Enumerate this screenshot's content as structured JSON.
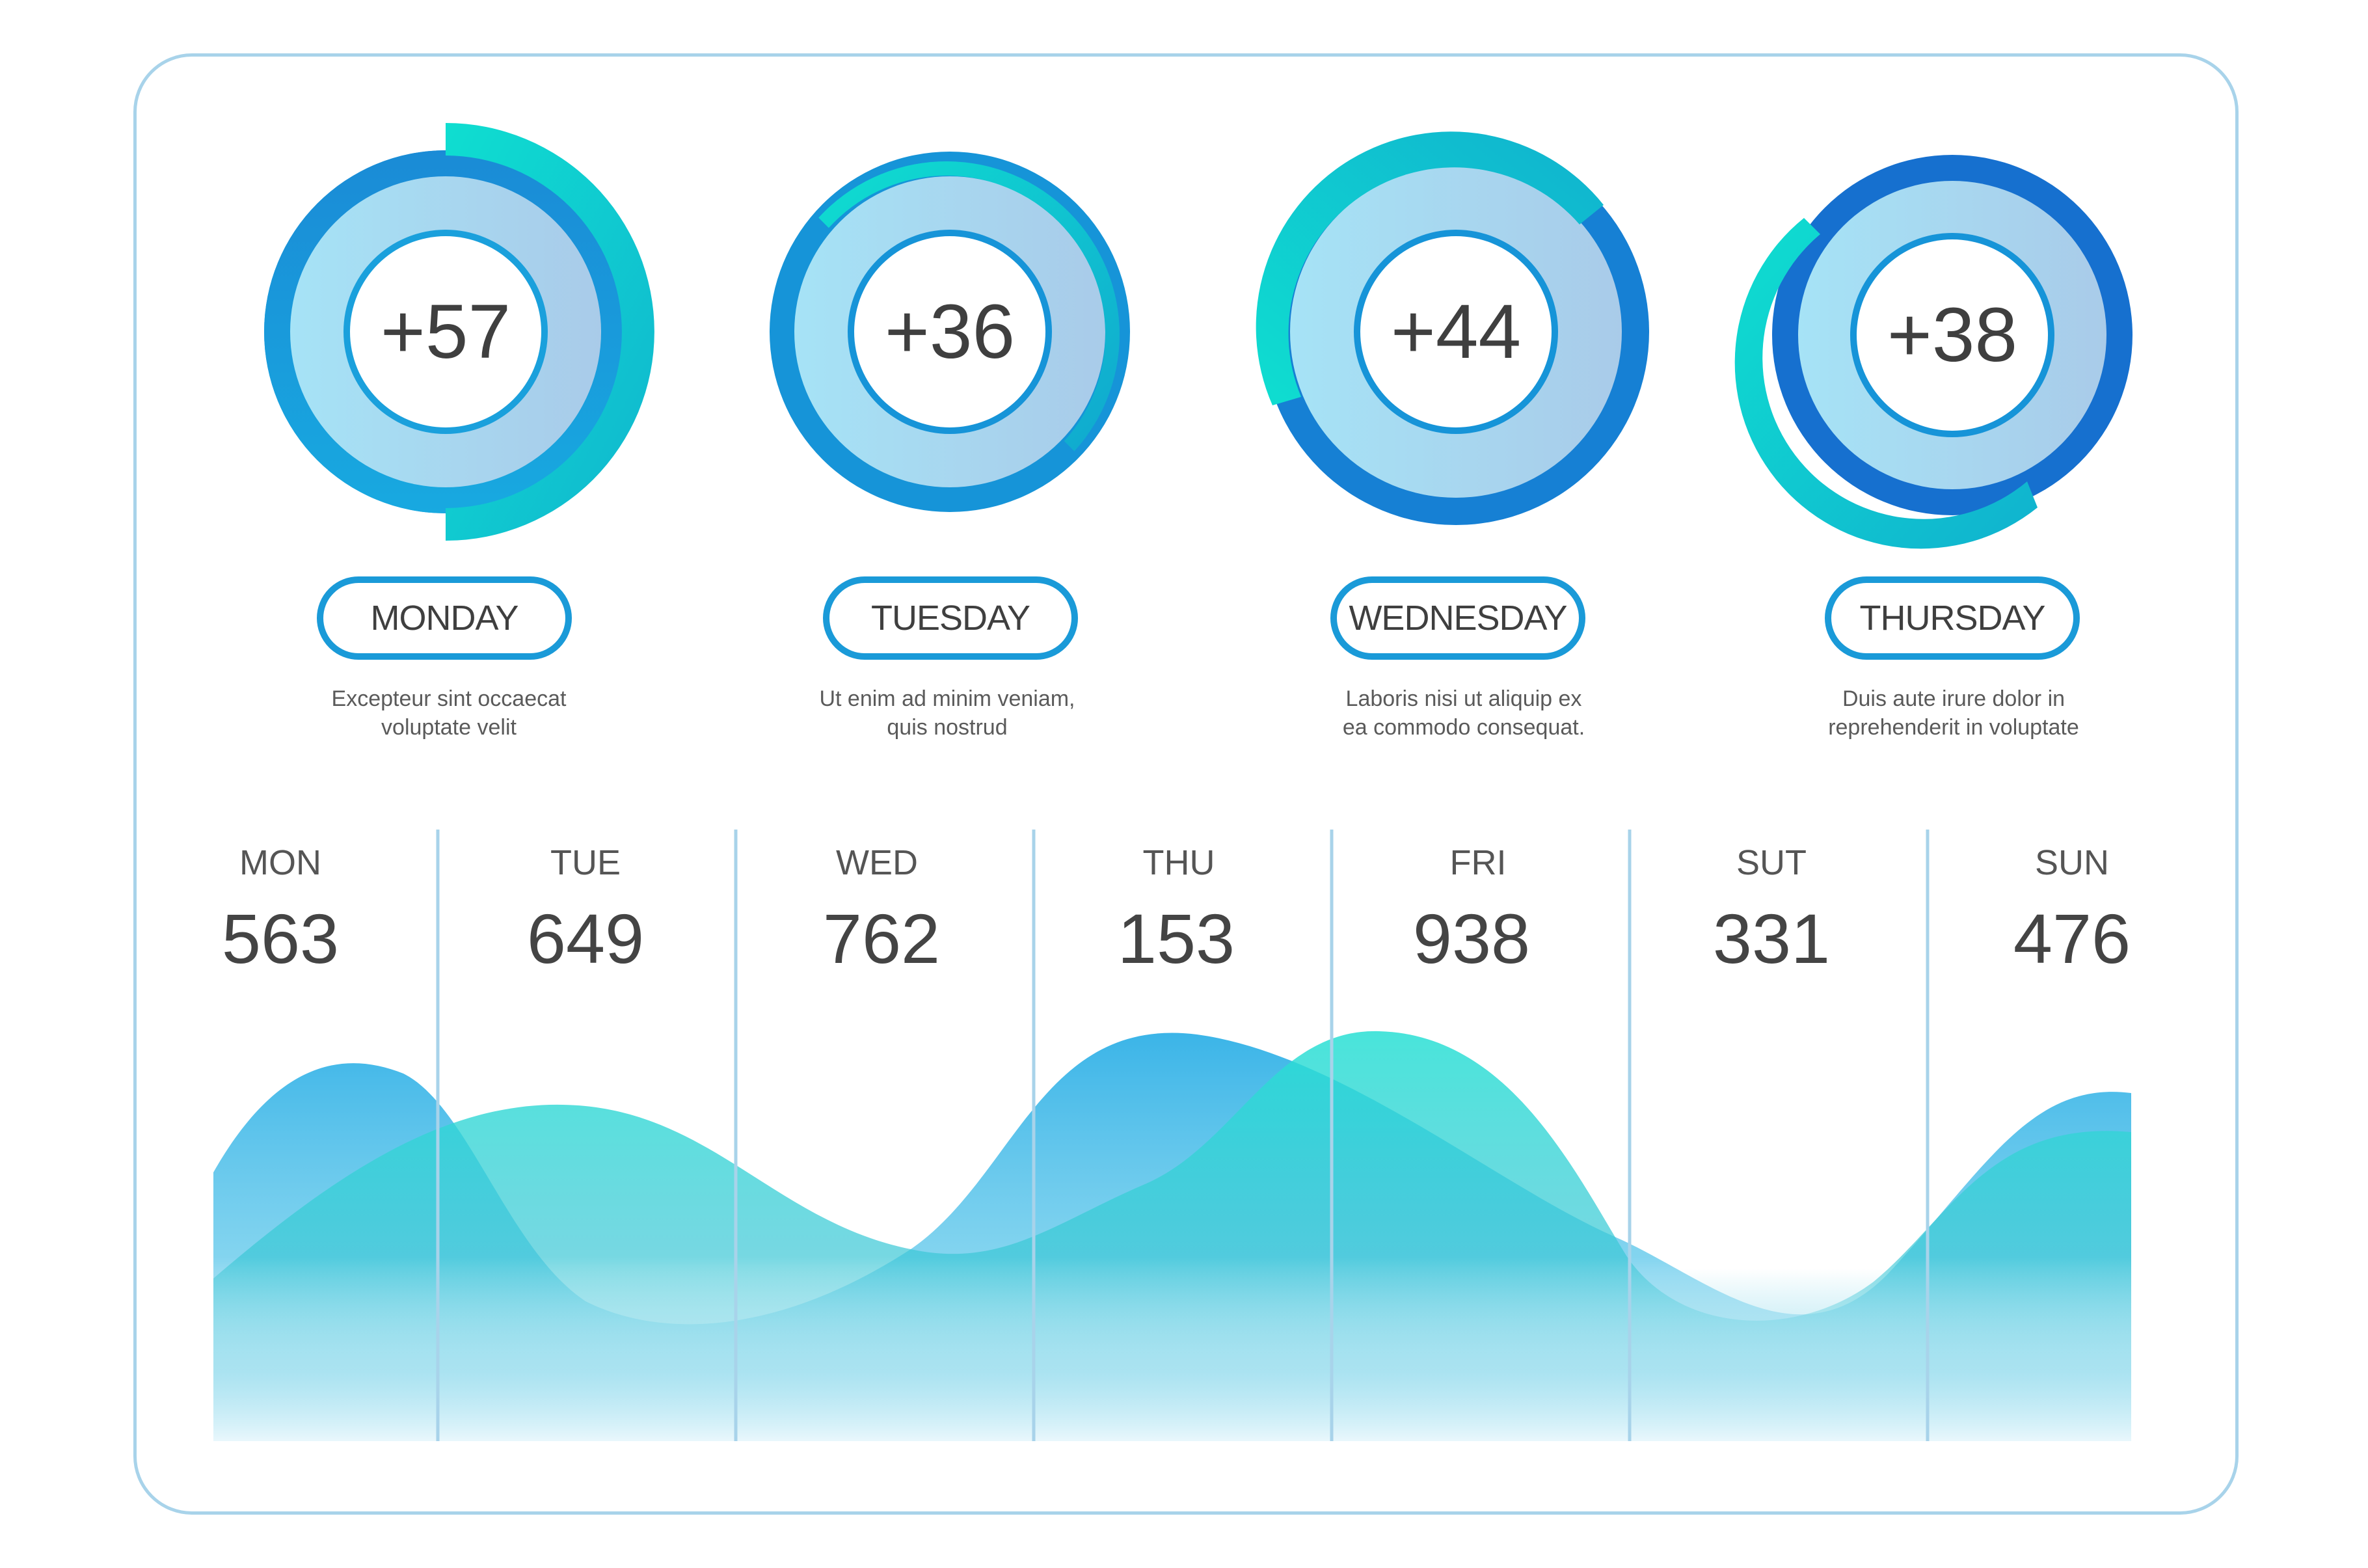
{
  "rings": [
    {
      "value": "+57",
      "day": "MONDAY",
      "desc_line1": "Excepteur sint occaecat",
      "desc_line2": "voluptate velit"
    },
    {
      "value": "+36",
      "day": "TUESDAY",
      "desc_line1": "Ut enim ad minim veniam,",
      "desc_line2": "quis nostrud"
    },
    {
      "value": "+44",
      "day": "WEDNESDAY",
      "desc_line1": "Laboris nisi ut aliquip ex",
      "desc_line2": "ea commodo consequat."
    },
    {
      "value": "+38",
      "day": "THURSDAY",
      "desc_line1": "Duis aute irure dolor in",
      "desc_line2": "reprehenderit in voluptate"
    }
  ],
  "week": [
    {
      "label": "MON",
      "value": "563"
    },
    {
      "label": "TUE",
      "value": "649"
    },
    {
      "label": "WED",
      "value": "762"
    },
    {
      "label": "THU",
      "value": "153"
    },
    {
      "label": "FRI",
      "value": "938"
    },
    {
      "label": "SUT",
      "value": "331"
    },
    {
      "label": "SUN",
      "value": "476"
    }
  ],
  "colors": {
    "border": "#a8d3ea",
    "blue": "#1a8fd8",
    "teal": "#11d6c9",
    "ring_fill_light": "#a6e2f5",
    "ring_fill_dark": "#a9cde9"
  }
}
